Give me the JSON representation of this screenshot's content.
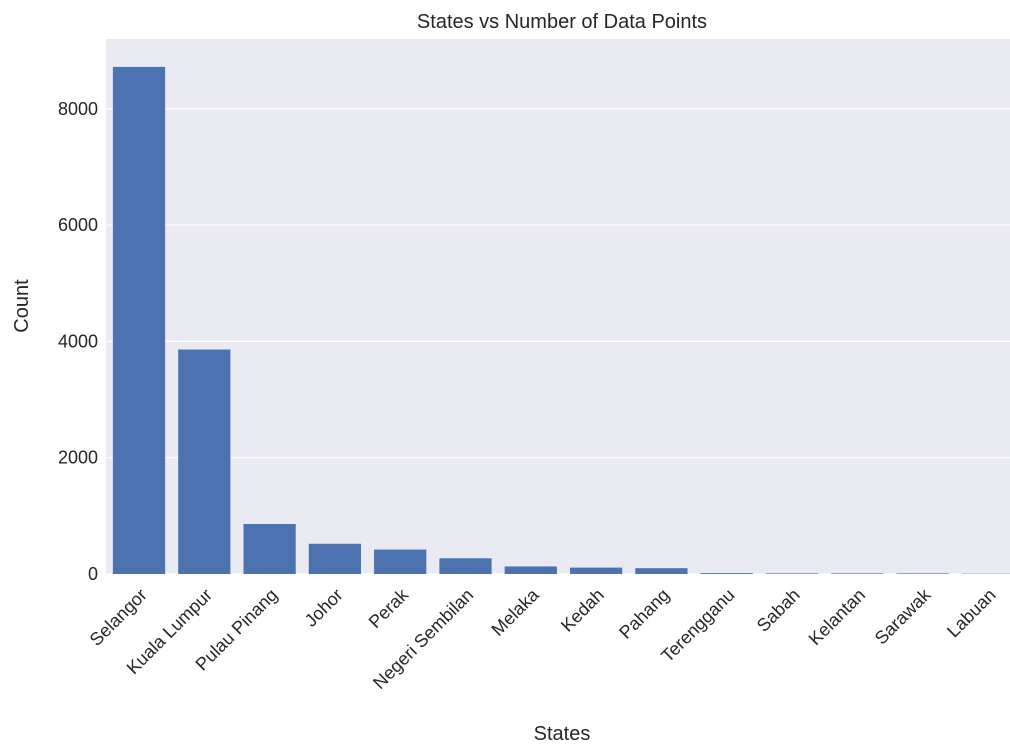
{
  "chart_data": {
    "type": "bar",
    "title": "States vs Number of Data Points",
    "xlabel": "States",
    "ylabel": "Count",
    "categories": [
      "Selangor",
      "Kuala Lumpur",
      "Pulau Pinang",
      "Johor",
      "Perak",
      "Negeri Sembilan",
      "Melaka",
      "Kedah",
      "Pahang",
      "Terengganu",
      "Sabah",
      "Kelantan",
      "Sarawak",
      "Labuan"
    ],
    "values": [
      8720,
      3860,
      860,
      520,
      420,
      270,
      130,
      110,
      100,
      15,
      10,
      10,
      10,
      5
    ],
    "ylim": [
      0,
      9200
    ],
    "yticks": [
      0,
      2000,
      4000,
      6000,
      8000
    ],
    "grid": true,
    "colors": {
      "bar": "#4c72b0",
      "plot_background": "#eaeaf2",
      "grid": "#ffffff"
    }
  }
}
